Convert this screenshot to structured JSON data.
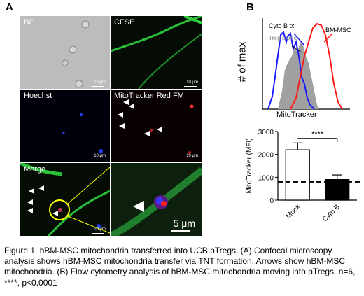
{
  "panel_a": {
    "letter": "A",
    "tiles": [
      {
        "label": "BF",
        "scale": "10 μm"
      },
      {
        "label": "CFSE",
        "scale": "10 μm"
      },
      {
        "label": "Hoechst",
        "scale": "10 μm"
      },
      {
        "label": "MitoTracker Red FM",
        "scale": "10 μm"
      },
      {
        "label": "Merge",
        "scale": "10 μm"
      },
      {
        "label": "",
        "scale": "5 μm"
      }
    ]
  },
  "panel_b": {
    "letter": "B",
    "histogram": {
      "ylabel": "# of max",
      "xlabel": "MitoTracker",
      "labels": {
        "cytob": "Cyto B tx",
        "treg": "Treg alone",
        "bmmsc": "BM-MSC"
      },
      "colors": {
        "cytob": "#1a1aff",
        "treg": "#a0a0a0",
        "bmmsc": "#ff1a1a"
      }
    }
  },
  "chart_data": {
    "type": "bar",
    "categories": [
      "Mock",
      "Cyto B"
    ],
    "values": [
      2200,
      900
    ],
    "errors": [
      300,
      200
    ],
    "ylabel": "MitoTracker (MFI)",
    "ylim": [
      0,
      3000
    ],
    "yticks": [
      0,
      1000,
      2000,
      3000
    ],
    "dashed_line": 800,
    "significance": "****",
    "bar_colors": [
      "#ffffff",
      "#000000"
    ]
  },
  "caption": "Figure 1. hBM-MSC mitochondria transferred into UCB pTregs. (A) Confocal microscopy analysis shows hBM-MSC mitochondria transfer via TNT formation. Arrows show hBM-MSC mitochondria. (B) Flow cytometry analysis of hBM-MSC mitochondria moving into pTregs. n=6, ****, p<0.0001"
}
